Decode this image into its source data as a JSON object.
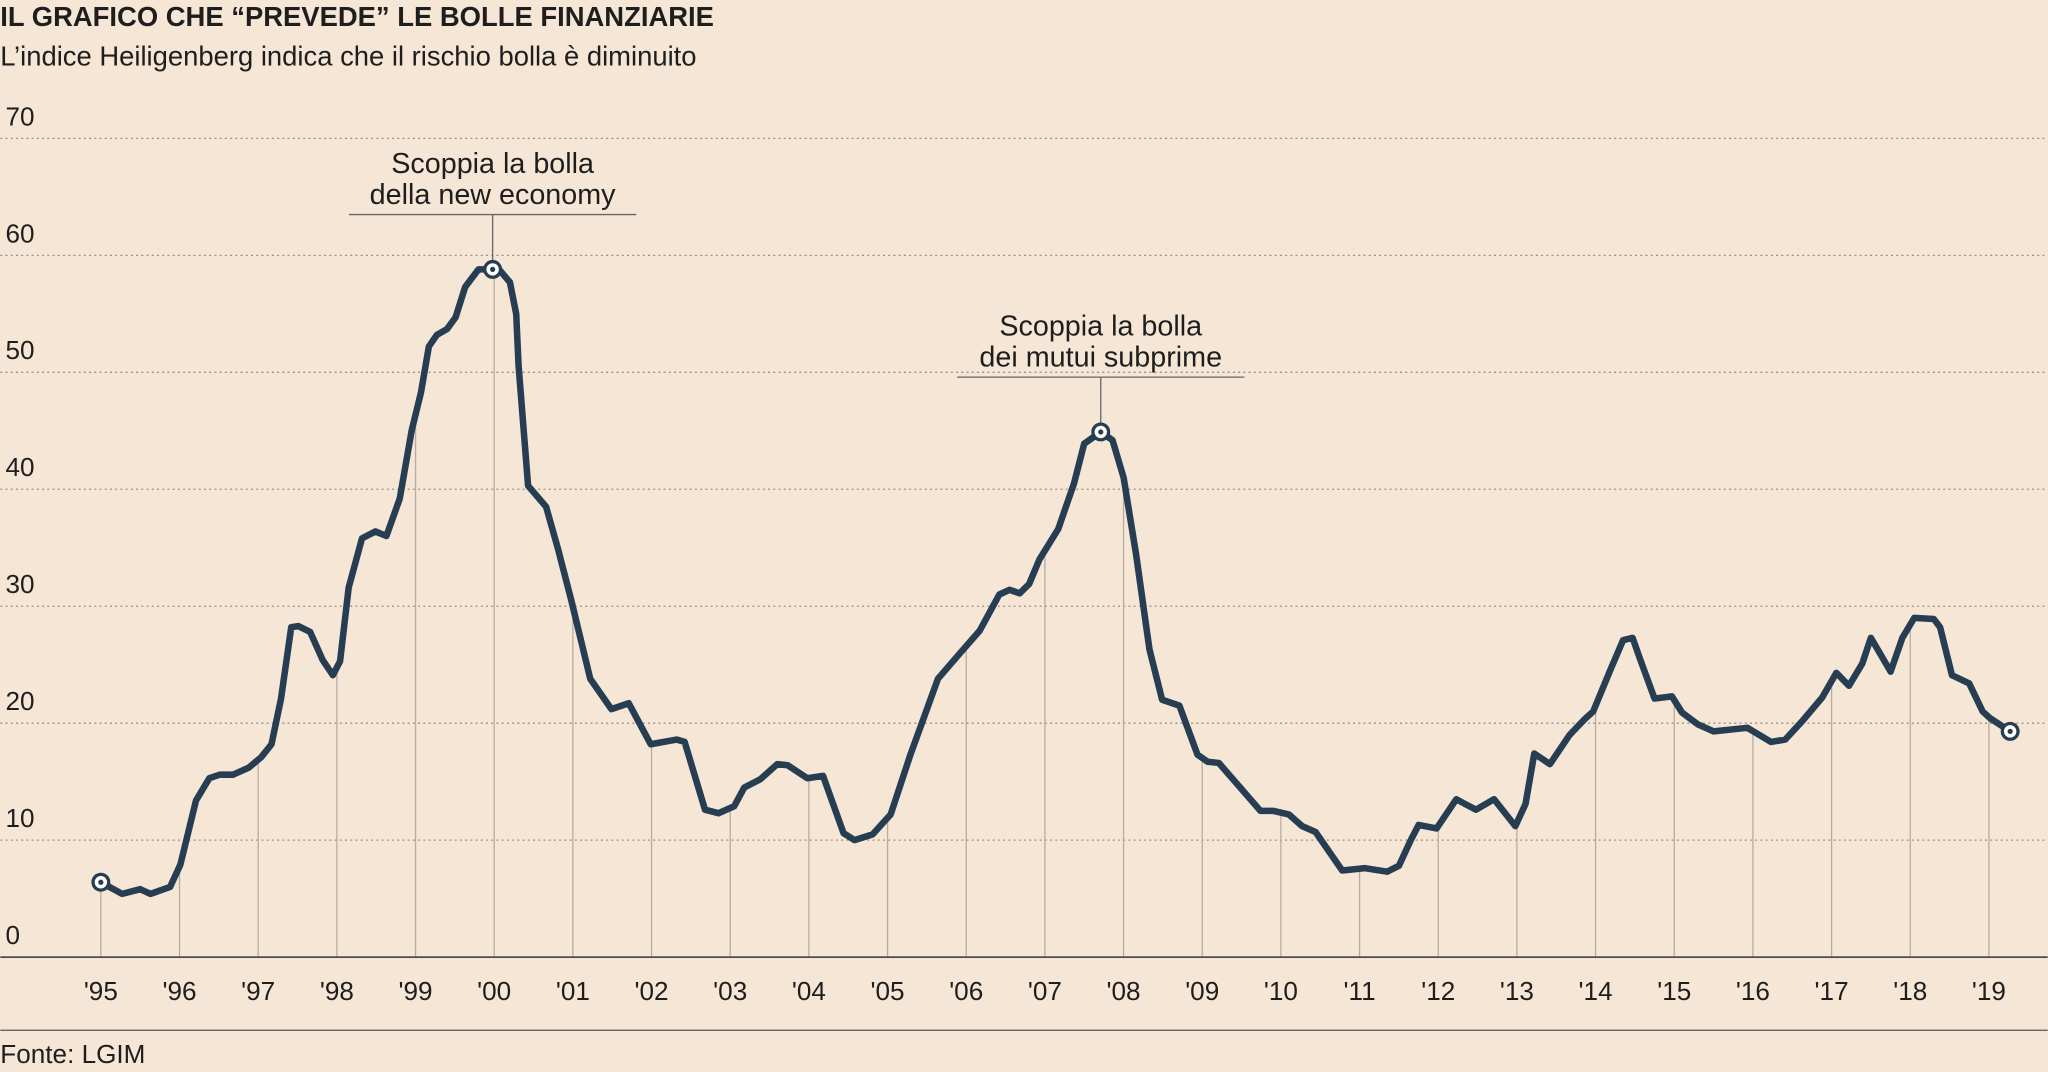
{
  "chart_data": {
    "type": "line",
    "title": "IL GRAFICO CHE “PREVEDE” LE BOLLE FINANZIARIE",
    "subtitle": "L’indice Heiligenberg indica che il rischio bolla è diminuito",
    "source": "Fonte: LGIM",
    "color": "#263d52",
    "grid": true,
    "ylim": [
      0,
      70
    ],
    "yticks": [
      0,
      10,
      20,
      30,
      40,
      50,
      60,
      70
    ],
    "xlim": [
      1995,
      2019.75
    ],
    "xticks": [
      {
        "value": 1995,
        "label": "'95"
      },
      {
        "value": 1996,
        "label": "'96"
      },
      {
        "value": 1997,
        "label": "'97"
      },
      {
        "value": 1998,
        "label": "'98"
      },
      {
        "value": 1999,
        "label": "'99"
      },
      {
        "value": 2000,
        "label": "'00"
      },
      {
        "value": 2001,
        "label": "'01"
      },
      {
        "value": 2002,
        "label": "'02"
      },
      {
        "value": 2003,
        "label": "'03"
      },
      {
        "value": 2004,
        "label": "'04"
      },
      {
        "value": 2005,
        "label": "'05"
      },
      {
        "value": 2006,
        "label": "'06"
      },
      {
        "value": 2007,
        "label": "'07"
      },
      {
        "value": 2008,
        "label": "'08"
      },
      {
        "value": 2009,
        "label": "'09"
      },
      {
        "value": 2010,
        "label": "'10"
      },
      {
        "value": 2011,
        "label": "'11"
      },
      {
        "value": 2012,
        "label": "'12"
      },
      {
        "value": 2013,
        "label": "'13"
      },
      {
        "value": 2014,
        "label": "'14"
      },
      {
        "value": 2015,
        "label": "'15"
      },
      {
        "value": 2016,
        "label": "'16"
      },
      {
        "value": 2017,
        "label": "'17"
      },
      {
        "value": 2018,
        "label": "'18"
      },
      {
        "value": 2019,
        "label": "'19"
      }
    ],
    "x": [
      1995,
      1995.27,
      1995.5,
      1995.63,
      1995.88,
      1996.01,
      1996.21,
      1996.38,
      1996.51,
      1996.68,
      1996.88,
      1997.04,
      1997.17,
      1997.29,
      1997.42,
      1997.51,
      1997.66,
      1997.82,
      1997.95,
      1998.04,
      1998.15,
      1998.32,
      1998.49,
      1998.63,
      1998.8,
      1998.95,
      1999.07,
      1999.17,
      1999.27,
      1999.4,
      1999.51,
      1999.63,
      1999.8,
      1999.93,
      2000.06,
      2000.2,
      2000.28,
      2000.31,
      2000.43,
      2000.66,
      2000.81,
      2000.98,
      2001.22,
      2001.49,
      2001.71,
      2001.99,
      2002.32,
      2002.42,
      2002.68,
      2002.85,
      2003.05,
      2003.18,
      2003.38,
      2003.6,
      2003.73,
      2003.98,
      2004.18,
      2004.44,
      2004.58,
      2004.81,
      2005.04,
      2005.29,
      2005.64,
      2005.95,
      2006.17,
      2006.42,
      2006.55,
      2006.68,
      2006.8,
      2006.93,
      2007.17,
      2007.37,
      2007.5,
      2007.71,
      2007.86,
      2008,
      2008.16,
      2008.33,
      2008.49,
      2008.71,
      2008.94,
      2009.07,
      2009.21,
      2009.74,
      2009.9,
      2010.1,
      2010.27,
      2010.44,
      2010.78,
      2011.07,
      2011.35,
      2011.5,
      2011.65,
      2011.75,
      2011.98,
      2012.23,
      2012.34,
      2012.48,
      2012.71,
      2012.98,
      2013.11,
      2013.22,
      2013.42,
      2013.67,
      2013.87,
      2013.97,
      2014.19,
      2014.35,
      2014.47,
      2014.57,
      2014.75,
      2014.97,
      2015.1,
      2015.3,
      2015.5,
      2015.93,
      2016.23,
      2016.41,
      2016.63,
      2016.88,
      2017.06,
      2017.22,
      2017.39,
      2017.5,
      2017.75,
      2017.9,
      2018.05,
      2018.3,
      2018.38,
      2018.53,
      2018.75,
      2018.92,
      2019.02,
      2019.27
    ],
    "values": [
      6.4,
      5.4,
      5.8,
      5.4,
      6,
      7.9,
      13.4,
      15.3,
      15.6,
      15.6,
      16.2,
      17.1,
      18.2,
      22.1,
      28.2,
      28.3,
      27.8,
      25.4,
      24.1,
      25.3,
      31.6,
      35.8,
      36.4,
      36,
      39.2,
      45,
      48.3,
      52.2,
      53.2,
      53.7,
      54.7,
      57.3,
      58.8,
      58.8,
      58.8,
      57.7,
      55,
      50.6,
      40.3,
      38.5,
      34.9,
      30.5,
      23.8,
      21.2,
      21.7,
      18.2,
      18.6,
      18.4,
      12.6,
      12.3,
      12.9,
      14.5,
      15.2,
      16.5,
      16.4,
      15.3,
      15.5,
      10.6,
      10,
      10.5,
      12.2,
      17.3,
      23.8,
      26.2,
      27.9,
      31,
      31.4,
      31.1,
      31.9,
      34,
      36.6,
      40.5,
      43.9,
      44.9,
      44.2,
      41,
      34.4,
      26.3,
      22,
      21.5,
      17.3,
      16.7,
      16.6,
      12.5,
      12.5,
      12.2,
      11.2,
      10.7,
      7.4,
      7.6,
      7.3,
      7.8,
      10,
      11.3,
      11,
      13.5,
      13.1,
      12.6,
      13.5,
      11.2,
      13.1,
      17.4,
      16.5,
      19,
      20.4,
      21,
      24.6,
      27.1,
      27.3,
      25.4,
      22.1,
      22.3,
      20.9,
      19.9,
      19.3,
      19.6,
      18.4,
      18.6,
      20.2,
      22.2,
      24.3,
      23.2,
      25.1,
      27.3,
      24.4,
      27.3,
      29,
      28.9,
      28.2,
      24.1,
      23.4,
      21,
      20.4,
      19.3
    ],
    "annotations": [
      {
        "lines": [
          "Scoppia la bolla",
          "della new economy"
        ],
        "x": 1999.98,
        "y": 58.8
      },
      {
        "lines": [
          "Scoppia la bolla",
          "dei mutui subprime"
        ],
        "x": 2007.71,
        "y": 44.9
      }
    ]
  }
}
